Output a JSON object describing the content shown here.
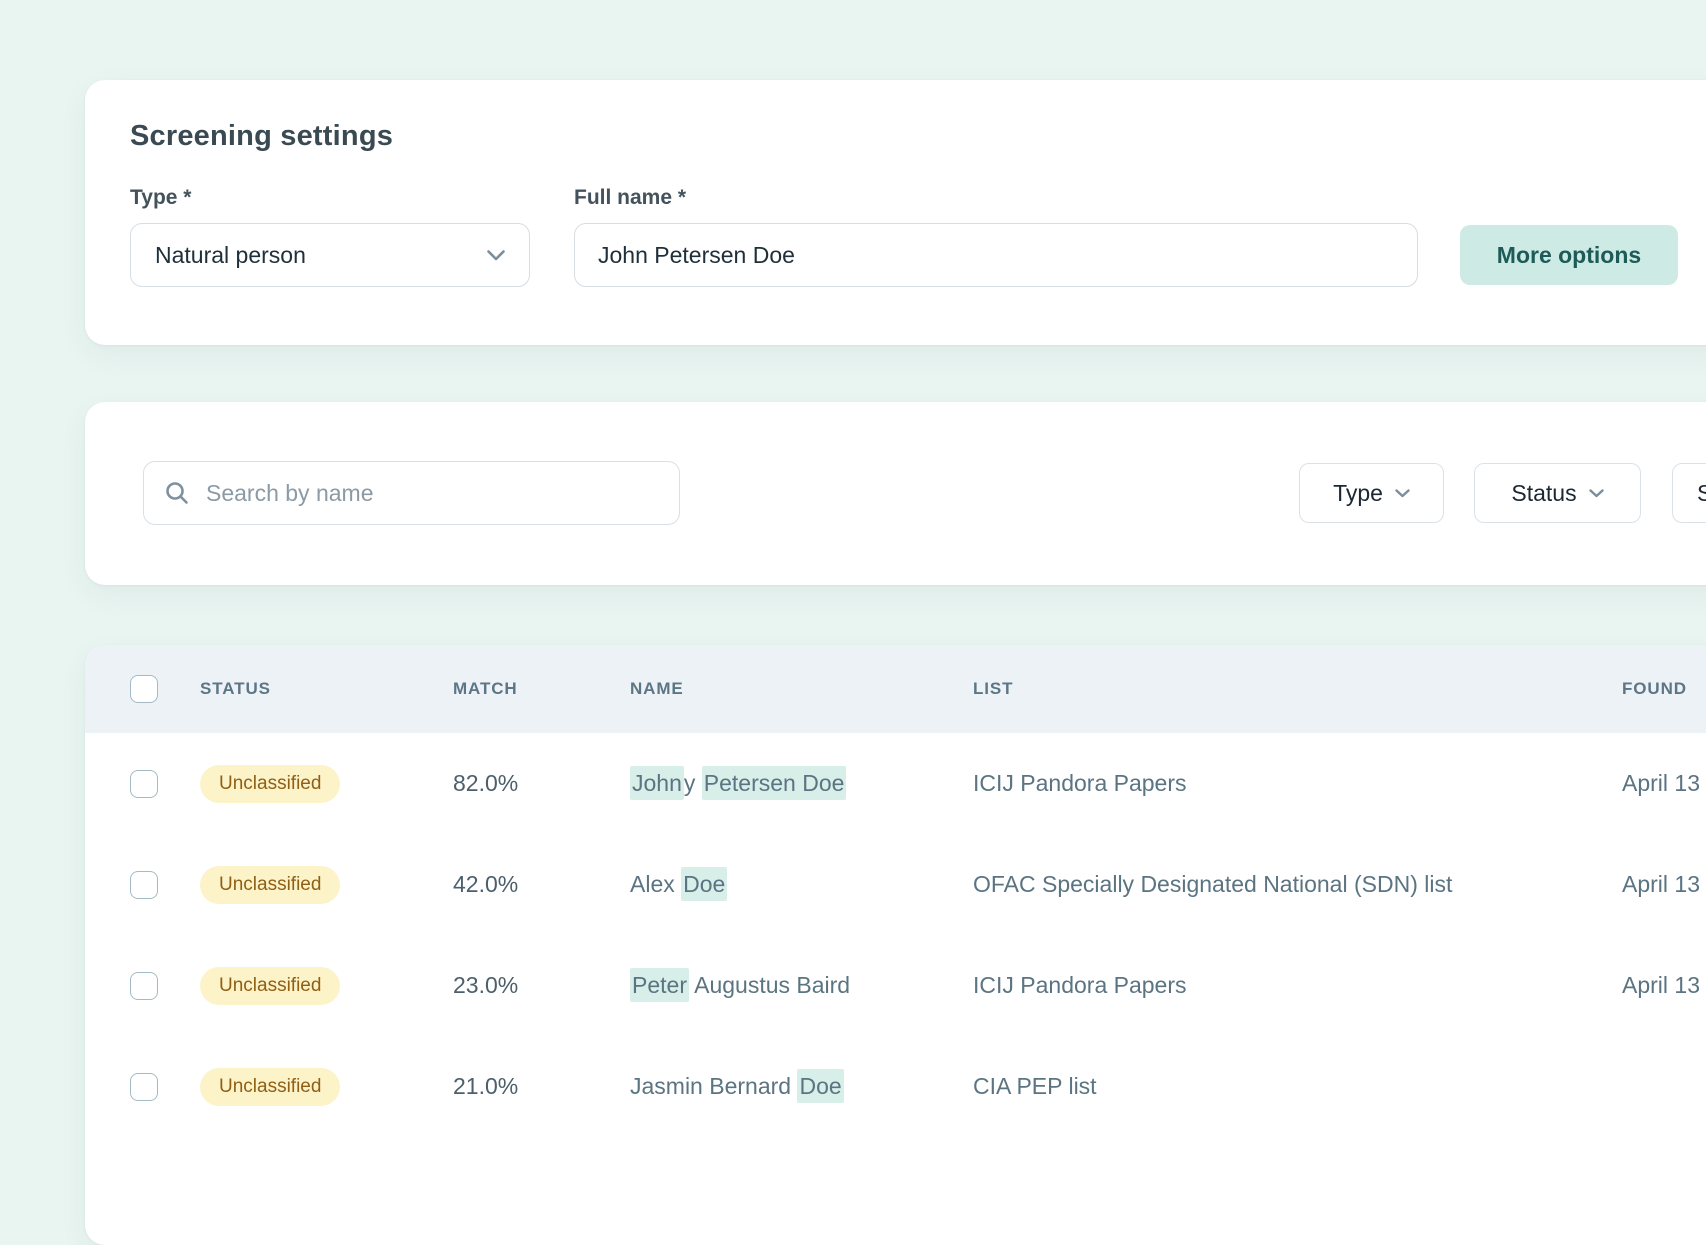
{
  "theme": {
    "page_bg": "#e9f5f1",
    "accent_mint": "#cdebe4",
    "accent_teal_text": "#1e5a58",
    "badge_bg": "#fdf3c9",
    "badge_text": "#8f5f15",
    "name_highlight_bg": "#d7eee9",
    "table_header_bg": "#edf2f6"
  },
  "screening_settings": {
    "title": "Screening settings",
    "type_label": "Type *",
    "type_value": "Natural person",
    "full_name_label": "Full name *",
    "full_name_value": "John Petersen Doe",
    "more_options_label": "More options"
  },
  "search": {
    "placeholder": "Search by name",
    "filters": [
      {
        "label": "Type"
      },
      {
        "label": "Status"
      },
      {
        "label": "S"
      }
    ]
  },
  "table": {
    "columns": [
      "STATUS",
      "MATCH",
      "NAME",
      "LIST",
      "FOUND"
    ],
    "rows": [
      {
        "status": "Unclassified",
        "match": "82.0%",
        "name_segments": [
          {
            "text": "John",
            "highlight": true
          },
          {
            "text": "y ",
            "highlight": false
          },
          {
            "text": "Petersen Doe",
            "highlight": true
          }
        ],
        "list": "ICIJ Pandora Papers",
        "found": "April 13"
      },
      {
        "status": "Unclassified",
        "match": "42.0%",
        "name_segments": [
          {
            "text": "Alex ",
            "highlight": false
          },
          {
            "text": "Doe",
            "highlight": true
          }
        ],
        "list": "OFAC Specially Designated National (SDN) list",
        "found": "April 13"
      },
      {
        "status": "Unclassified",
        "match": "23.0%",
        "name_segments": [
          {
            "text": "Peter",
            "highlight": true
          },
          {
            "text": " Augustus Baird",
            "highlight": false
          }
        ],
        "list": "ICIJ Pandora Papers",
        "found": "April 13"
      },
      {
        "status": "Unclassified",
        "match": "21.0%",
        "name_segments": [
          {
            "text": "Jasmin Bernard ",
            "highlight": false
          },
          {
            "text": "Doe",
            "highlight": true
          }
        ],
        "list": "CIA PEP list",
        "found": ""
      }
    ]
  }
}
